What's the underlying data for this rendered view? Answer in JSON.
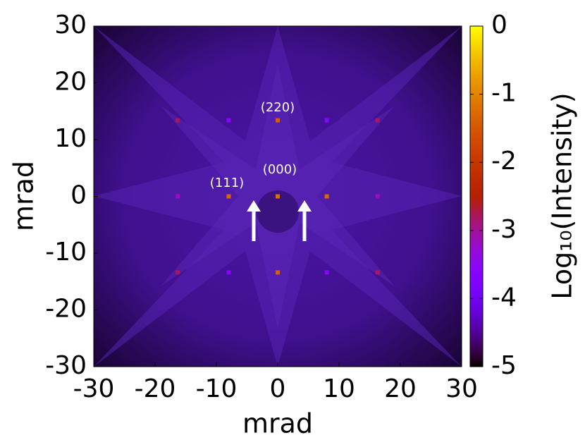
{
  "chart_data": {
    "type": "heatmap",
    "xlabel": "mrad",
    "ylabel": "mrad",
    "colorbar_label": "Log₁₀(Intensity)",
    "xlim": [
      -30,
      30
    ],
    "ylim": [
      -30,
      30
    ],
    "clim": [
      -5,
      0
    ],
    "xticks": [
      -30,
      -20,
      -10,
      0,
      10,
      20,
      30
    ],
    "yticks": [
      -30,
      -20,
      -10,
      0,
      10,
      20,
      30
    ],
    "cticks": [
      -5,
      -4,
      -3,
      -2,
      -1,
      0
    ],
    "colormap": "gnuplot",
    "spots": {
      "x": [
        0,
        -8,
        8,
        0,
        0,
        -16.3,
        16.3,
        -16.3,
        16.3,
        -16.3,
        16.3,
        -8,
        8,
        -8,
        8
      ],
      "y": [
        0,
        0,
        0,
        13.4,
        -13.4,
        13.4,
        13.4,
        -13.4,
        -13.4,
        0,
        0,
        13.4,
        13.4,
        -13.4,
        -13.4
      ],
      "values": [
        -1.2,
        -1.3,
        -1.3,
        -1.4,
        -1.4,
        -2.8,
        -2.8,
        -2.8,
        -2.8,
        -3.2,
        -3.2,
        -3.6,
        -3.6,
        -3.6,
        -3.6
      ]
    },
    "annotations": [
      "(220)",
      "(000)",
      "(111)"
    ]
  }
}
